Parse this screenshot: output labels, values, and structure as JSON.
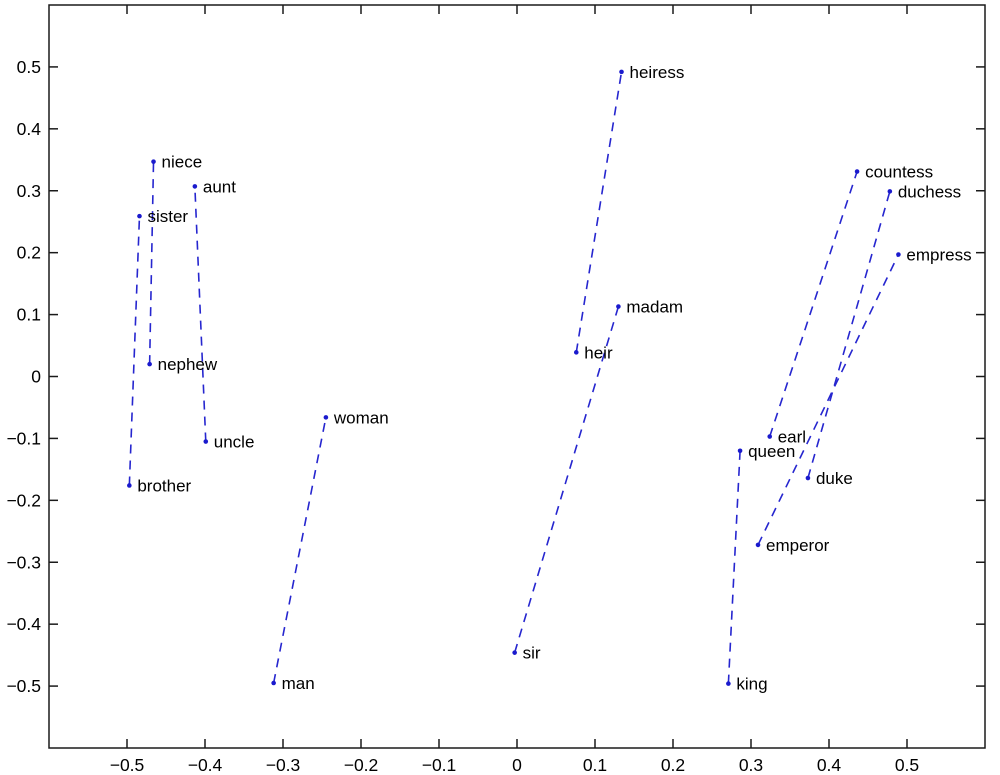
{
  "chart_data": {
    "type": "scatter",
    "title": "",
    "xlabel": "",
    "ylabel": "",
    "xlim": [
      -0.6,
      0.6
    ],
    "ylim": [
      -0.6,
      0.6
    ],
    "grid": false,
    "legend_position": "none",
    "x_ticks": [
      -0.5,
      -0.4,
      -0.3,
      -0.2,
      -0.1,
      0,
      0.1,
      0.2,
      0.3,
      0.4,
      0.5
    ],
    "x_tick_labels": [
      "−0.5",
      "−0.4",
      "−0.3",
      "−0.2",
      "−0.1",
      "0",
      "0.1",
      "0.2",
      "0.3",
      "0.4",
      "0.5"
    ],
    "y_ticks": [
      -0.5,
      -0.4,
      -0.3,
      -0.2,
      -0.1,
      0,
      0.1,
      0.2,
      0.3,
      0.4,
      0.5
    ],
    "y_tick_labels": [
      "−0.5",
      "−0.4",
      "−0.3",
      "−0.2",
      "−0.1",
      "0",
      "0.1",
      "0.2",
      "0.3",
      "0.4",
      "0.5"
    ],
    "marker_color": "#1a1acd",
    "line_color": "#2626cf",
    "line_style": "dashed",
    "pairs": [
      {
        "from": {
          "label": "brother",
          "x": -0.497,
          "y": -0.176
        },
        "to": {
          "label": "sister",
          "x": -0.484,
          "y": 0.259
        }
      },
      {
        "from": {
          "label": "nephew",
          "x": -0.471,
          "y": 0.02
        },
        "to": {
          "label": "niece",
          "x": -0.466,
          "y": 0.347
        }
      },
      {
        "from": {
          "label": "uncle",
          "x": -0.399,
          "y": -0.105
        },
        "to": {
          "label": "aunt",
          "x": -0.413,
          "y": 0.307
        }
      },
      {
        "from": {
          "label": "man",
          "x": -0.312,
          "y": -0.495
        },
        "to": {
          "label": "woman",
          "x": -0.245,
          "y": -0.066
        }
      },
      {
        "from": {
          "label": "sir",
          "x": -0.003,
          "y": -0.446
        },
        "to": {
          "label": "madam",
          "x": 0.13,
          "y": 0.113
        }
      },
      {
        "from": {
          "label": "heir",
          "x": 0.076,
          "y": 0.039
        },
        "to": {
          "label": "heiress",
          "x": 0.134,
          "y": 0.492
        }
      },
      {
        "from": {
          "label": "king",
          "x": 0.271,
          "y": -0.496
        },
        "to": {
          "label": "queen",
          "x": 0.286,
          "y": -0.12
        }
      },
      {
        "from": {
          "label": "emperor",
          "x": 0.309,
          "y": -0.272
        },
        "to": {
          "label": "empress",
          "x": 0.489,
          "y": 0.197
        }
      },
      {
        "from": {
          "label": "duke",
          "x": 0.373,
          "y": -0.164
        },
        "to": {
          "label": "duchess",
          "x": 0.478,
          "y": 0.299
        }
      },
      {
        "from": {
          "label": "earl",
          "x": 0.324,
          "y": -0.097
        },
        "to": {
          "label": "countess",
          "x": 0.436,
          "y": 0.331
        }
      }
    ]
  }
}
